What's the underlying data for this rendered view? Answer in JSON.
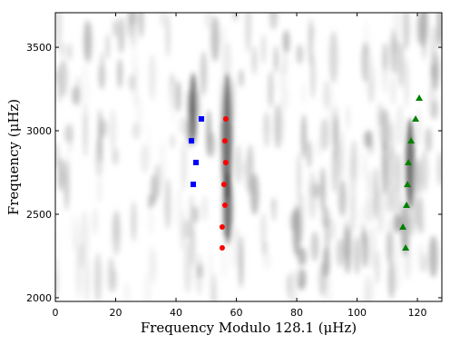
{
  "chart_data": {
    "type": "scatter",
    "xlabel": "Frequency Modulo 128.1 (μHz)",
    "ylabel": "Frequency (μHz)",
    "xlim": [
      0,
      128.1
    ],
    "ylim": [
      1978,
      3707
    ],
    "xticks": [
      0,
      20,
      40,
      60,
      80,
      100,
      120
    ],
    "yticks": [
      2000,
      2500,
      3000,
      3500
    ],
    "series": [
      {
        "color": "#0000ff",
        "marker": "square",
        "x": [
          48.4,
          45.1,
          46.6,
          45.7
        ],
        "values": [
          3071,
          2940,
          2810,
          2679
        ]
      },
      {
        "color": "#ff0000",
        "marker": "circle",
        "x": [
          56.5,
          56.2,
          56.5,
          55.9,
          56.2,
          55.3,
          55.3
        ],
        "values": [
          3071,
          2940,
          2810,
          2679,
          2554,
          2424,
          2299
        ]
      },
      {
        "color": "#008000",
        "marker": "triangle",
        "x": [
          120.6,
          119.4,
          117.9,
          117.0,
          116.7,
          116.4,
          115.2,
          116.1
        ],
        "values": [
          3196,
          3071,
          2940,
          2810,
          2679,
          2554,
          2424,
          2299
        ]
      }
    ]
  }
}
